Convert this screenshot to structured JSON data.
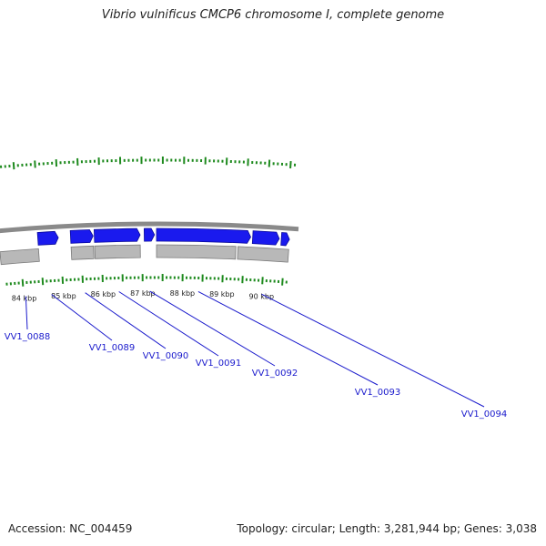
{
  "title": "Vibrio vulnificus CMCP6 chromosome I, complete genome",
  "footer": {
    "accession": "Accession: NC_004459",
    "summary": "Topology: circular; Length: 3,281,944 bp; Genes: 3,038"
  },
  "colors": {
    "gene_forward": "#1a1aee",
    "gene_reverse": "#b8b8b8",
    "backbone": "#8a8a8a",
    "tick": "#1e8a1e",
    "gene_label": "#1a1acc",
    "kbp_label": "#222222"
  },
  "view": {
    "start_kbp": 83.55,
    "end_kbp": 90.55
  },
  "kbp_labels": [
    "84 kbp",
    "85 kbp",
    "86 kbp",
    "87 kbp",
    "88 kbp",
    "89 kbp",
    "90 kbp"
  ],
  "genes": [
    {
      "id": "VV1_0088",
      "strand": "reverse",
      "start_kbp": 83.5,
      "end_kbp": 84.45
    },
    {
      "id": "VV1_0089",
      "strand": "forward",
      "start_kbp": 84.45,
      "end_kbp": 84.95
    },
    {
      "id": "VV1_0090",
      "strand": "forward",
      "start_kbp": 85.25,
      "end_kbp": 85.8
    },
    {
      "id": "VV1_0091",
      "strand": "forward",
      "start_kbp": 85.83,
      "end_kbp": 86.95
    },
    {
      "id": "VV1_0092",
      "strand": "forward",
      "start_kbp": 87.05,
      "end_kbp": 87.3
    },
    {
      "id": "VV1_0093",
      "strand": "forward",
      "start_kbp": 87.35,
      "end_kbp": 89.65
    },
    {
      "id": "VV1_0094",
      "strand": "forward",
      "start_kbp": 89.7,
      "end_kbp": 90.35
    },
    {
      "id": "",
      "strand": "forward",
      "start_kbp": 90.4,
      "end_kbp": 90.6
    },
    {
      "id": "",
      "strand": "reverse",
      "start_kbp": 85.25,
      "end_kbp": 85.8
    },
    {
      "id": "",
      "strand": "reverse",
      "start_kbp": 85.83,
      "end_kbp": 86.95
    },
    {
      "id": "",
      "strand": "reverse",
      "start_kbp": 87.35,
      "end_kbp": 89.3
    },
    {
      "id": "",
      "strand": "reverse",
      "start_kbp": 89.35,
      "end_kbp": 90.6
    }
  ]
}
